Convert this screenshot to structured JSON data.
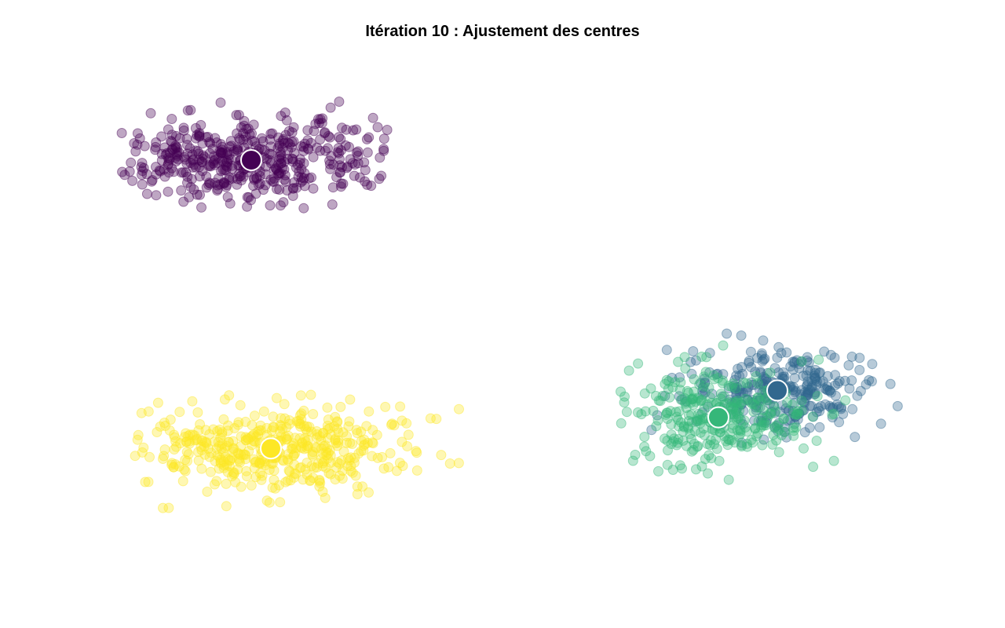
{
  "chart_data": {
    "type": "scatter",
    "title": "Itération 10 : Ajustement des centres",
    "xlabel": "",
    "ylabel": "",
    "axes_visible": false,
    "grid": false,
    "legend": "none",
    "xlim": [
      -12,
      12
    ],
    "ylim": [
      -10,
      10
    ],
    "point_alpha": 0.35,
    "clusters": [
      {
        "color": "#440154",
        "n_points": 450,
        "centroid": [
          -6.4,
          6.0
        ],
        "spread": [
          3.3,
          1.35
        ],
        "range_x": [
          -9.7,
          -2.9
        ],
        "range_y": [
          2.75,
          8.7
        ]
      },
      {
        "color": "#31688E",
        "n_points": 300,
        "centroid": [
          7.0,
          -2.15
        ],
        "spread": [
          2.1,
          1.3
        ],
        "range_x": [
          3.3,
          10.3
        ],
        "range_y": [
          -4.05,
          1.05
        ]
      },
      {
        "color": "#35B779",
        "n_points": 300,
        "centroid": [
          5.5,
          -3.1
        ],
        "spread": [
          2.2,
          1.45
        ],
        "range_x": [
          2.9,
          8.8
        ],
        "range_y": [
          -5.8,
          -0.1
        ]
      },
      {
        "color": "#FDE725",
        "n_points": 450,
        "centroid": [
          -5.9,
          -4.2
        ],
        "spread": [
          3.3,
          1.4
        ],
        "range_x": [
          -9.4,
          -1.1
        ],
        "range_y": [
          -7.5,
          -1.6
        ]
      }
    ]
  }
}
